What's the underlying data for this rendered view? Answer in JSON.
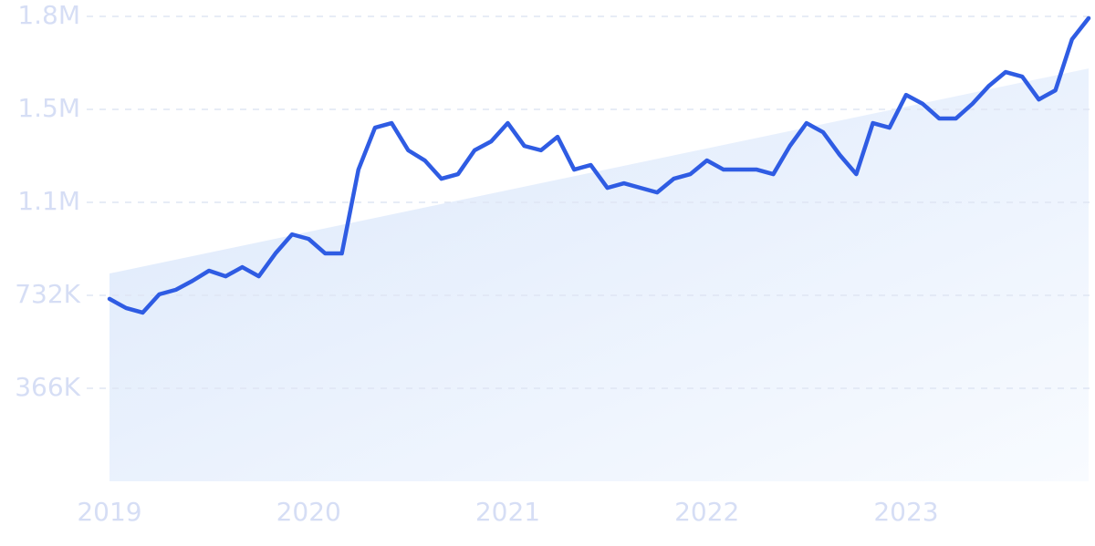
{
  "chart_data": {
    "type": "line",
    "categories": [
      "2019",
      null,
      null,
      null,
      null,
      null,
      null,
      null,
      null,
      null,
      null,
      null,
      "2020",
      null,
      null,
      null,
      null,
      null,
      null,
      null,
      null,
      null,
      null,
      null,
      "2021",
      null,
      null,
      null,
      null,
      null,
      null,
      null,
      null,
      null,
      null,
      null,
      "2022",
      null,
      null,
      null,
      null,
      null,
      null,
      null,
      null,
      null,
      null,
      null,
      "2023",
      null,
      null,
      null,
      null,
      null,
      null,
      null,
      null,
      null,
      null,
      null
    ],
    "values": [
      718000,
      682000,
      664000,
      736000,
      754000,
      789000,
      829000,
      807000,
      843000,
      807000,
      897000,
      972000,
      954000,
      897000,
      897000,
      1227000,
      1392000,
      1410000,
      1303000,
      1263000,
      1191000,
      1209000,
      1303000,
      1338000,
      1410000,
      1320000,
      1303000,
      1356000,
      1227000,
      1245000,
      1155000,
      1173000,
      1155000,
      1137000,
      1191000,
      1209000,
      1263000,
      1227000,
      1227000,
      1227000,
      1209000,
      1320000,
      1410000,
      1374000,
      1285000,
      1209000,
      1410000,
      1392000,
      1521000,
      1486000,
      1428000,
      1428000,
      1486000,
      1557000,
      1611000,
      1593000,
      1503000,
      1539000,
      1740000,
      1823000
    ],
    "color": "#2f5ce3",
    "trend": [
      818000,
      1625000
    ],
    "ylim": [
      0,
      1830000
    ],
    "yticks": [
      {
        "value": 366000,
        "label": "366K"
      },
      {
        "value": 732000,
        "label": "732K"
      },
      {
        "value": 1098000,
        "label": "1.1M"
      },
      {
        "value": 1464000,
        "label": "1.5M"
      },
      {
        "value": 1830000,
        "label": "1.8M"
      }
    ],
    "grid": true
  }
}
